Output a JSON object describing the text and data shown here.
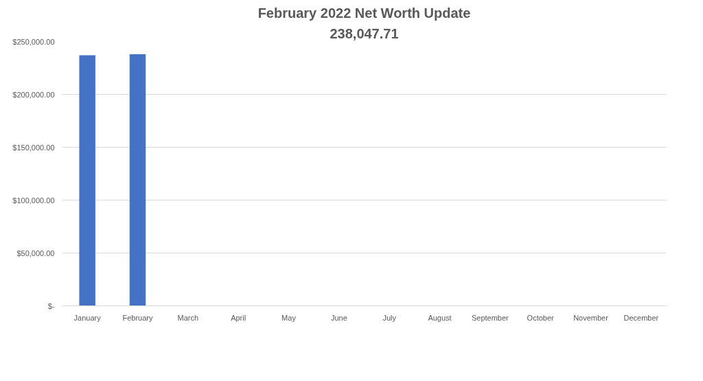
{
  "chart_data": {
    "type": "bar",
    "title": "February 2022 Net Worth Update",
    "subtitle": "238,047.71",
    "categories": [
      "January",
      "February",
      "March",
      "April",
      "May",
      "June",
      "July",
      "August",
      "September",
      "October",
      "November",
      "December"
    ],
    "values": [
      237000,
      238000,
      null,
      null,
      null,
      null,
      null,
      null,
      null,
      null,
      null,
      null
    ],
    "color": "#4472c4",
    "ylim": [
      0,
      250000
    ],
    "yticks": [
      {
        "value": 0,
        "label": "$-"
      },
      {
        "value": 50000,
        "label": "$50,000.00"
      },
      {
        "value": 100000,
        "label": "$100,000.00"
      },
      {
        "value": 150000,
        "label": "$150,000.00"
      },
      {
        "value": 200000,
        "label": "$200,000.00"
      },
      {
        "value": 250000,
        "label": "$250,000.00"
      }
    ],
    "grid": "y"
  }
}
